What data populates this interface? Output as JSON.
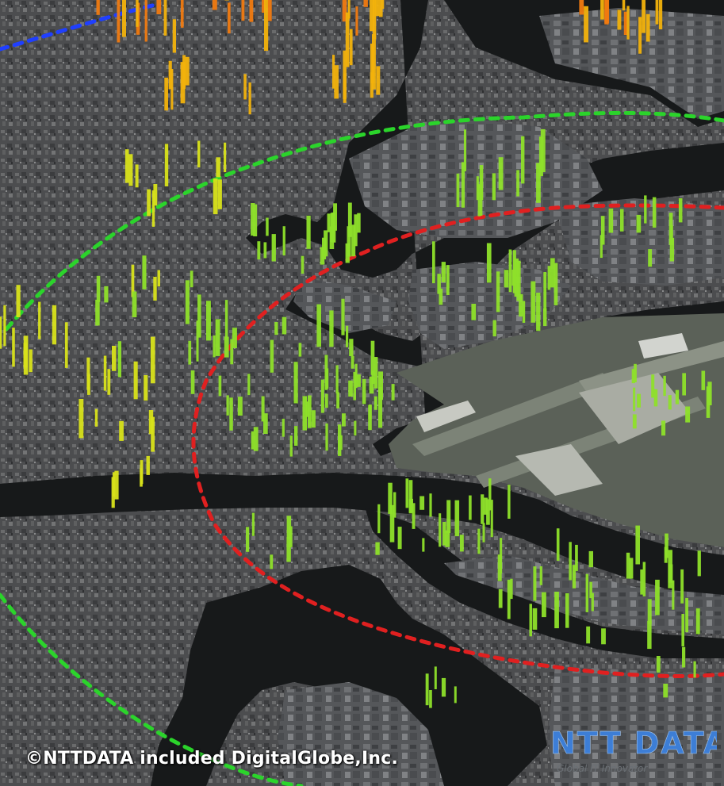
{
  "copyright": "©NTTDATA included DigitalGlobe,Inc.",
  "brand": {
    "logo_text": "NTT DATA",
    "tagline": "Global IT Innovator"
  },
  "colors": {
    "ground": "#4a4b4d",
    "water": "#17191a",
    "runway": "#6b7266",
    "ring_blue": "#1f3fff",
    "ring_green": "#2bd42b",
    "ring_red": "#e02020",
    "bar_green": "#8ee02a",
    "bar_yellow": "#d8e21a",
    "bar_gold": "#f2b20c",
    "bar_orange": "#f07a10",
    "brand_blue": "#3d7ed6"
  },
  "legend_rings": [
    "blue-ring",
    "green-ring",
    "red-ring"
  ]
}
